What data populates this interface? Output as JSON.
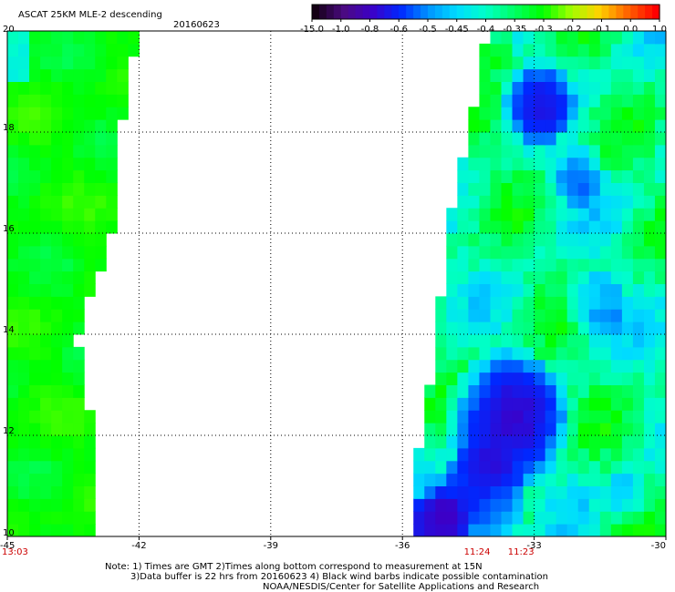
{
  "chart_data": {
    "type": "heatmap",
    "title": "ASCAT 25KM MLE-2 descending",
    "date": "20160623",
    "colorbar": {
      "labels": [
        "-15.0",
        "-1.0",
        "-0.8",
        "-0.6",
        "-0.5",
        "-0.45",
        "-0.4",
        "-0.35",
        "-0.3",
        "-0.2",
        "-0.1",
        "0.0",
        "1.0"
      ],
      "colors": [
        "#140014",
        "#4b0a82",
        "#3c00c8",
        "#0028ff",
        "#0096ff",
        "#00dcff",
        "#00ffc8",
        "#00ff64",
        "#00ff00",
        "#a0ff00",
        "#ffd200",
        "#ff6400",
        "#ff0000"
      ]
    },
    "x_ticks": [
      "-45",
      "-42",
      "-39",
      "-36",
      "-33",
      "-30"
    ],
    "x_tick_values": [
      -45,
      -42,
      -39,
      -36,
      -33,
      -30
    ],
    "y_ticks": [
      "10",
      "12",
      "14",
      "16",
      "18",
      "20"
    ],
    "y_tick_values": [
      10,
      12,
      14,
      16,
      18,
      20
    ],
    "xlim": [
      -45,
      -30
    ],
    "ylim": [
      10,
      20
    ],
    "grid": true,
    "time_labels": [
      {
        "text": "13:03",
        "lon": -45
      },
      {
        "text": "11:24",
        "lon": -34.3
      },
      {
        "text": "11:23",
        "lon": -33.3
      }
    ],
    "swaths": [
      {
        "name": "west",
        "edge": [
          [
            10,
            -42.9
          ],
          [
            12,
            -43.0
          ],
          [
            14,
            -43.4
          ],
          [
            16,
            -42.6
          ],
          [
            18,
            -42.4
          ],
          [
            20,
            -42.0
          ]
        ]
      },
      {
        "name": "east",
        "edge": [
          [
            10,
            -35.8
          ],
          [
            12,
            -35.6
          ],
          [
            14,
            -35.2
          ],
          [
            16,
            -35.0
          ],
          [
            18,
            -34.5
          ],
          [
            20,
            -34.1
          ]
        ]
      }
    ]
  },
  "notes": {
    "line1": "Note: 1) Times are GMT 2)Times along bottom correspond to measurement at 15N",
    "line2": "3)Data buffer is 22 hrs from 20160623 4) Black wind barbs indicate possible contamination",
    "line3": "NOAA/NESDIS/Center for Satellite Applications and Research"
  }
}
